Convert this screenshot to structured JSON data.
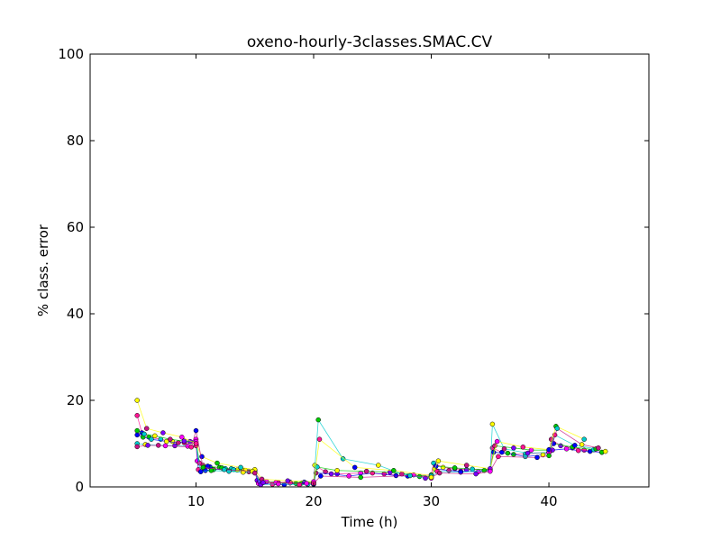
{
  "chart_data": {
    "type": "scatter",
    "title": "oxeno-hourly-3classes.SMAC.CV",
    "xlabel": "Time (h)",
    "ylabel": "% class. error",
    "xlim": [
      1,
      48.5
    ],
    "ylim": [
      0,
      100
    ],
    "xticks": [
      10,
      20,
      30,
      40
    ],
    "yticks": [
      0,
      20,
      40,
      60,
      80,
      100
    ],
    "grid": false,
    "legend": "none",
    "connected_lines": true,
    "marker": "circle",
    "colors": [
      "#ff1493",
      "#0000ff",
      "#00cc00",
      "#00cccc",
      "#ffff00",
      "#c71585",
      "#7b00ff",
      "#ff00ff"
    ],
    "series": [
      {
        "x": [
          5.0,
          5.4,
          6.0,
          7.0,
          8.0,
          9.0,
          10.0,
          10.1,
          10.6,
          11.2,
          12.0,
          13.0,
          14.0,
          15.0,
          15.2,
          16.0,
          17.0,
          18.0,
          19.0,
          20.0,
          20.1,
          21.0,
          22.0,
          24.0,
          26.0,
          28.0,
          30.0,
          30.2,
          31.0,
          32.0,
          33.0,
          35.0,
          35.2,
          36.0,
          37.0,
          38.0,
          40.0,
          40.2,
          41.0,
          42.0,
          43.0,
          44.5
        ],
        "y": [
          16.5,
          12.5,
          11.5,
          11.0,
          10.5,
          10.2,
          10.0,
          6.0,
          5.0,
          4.6,
          4.5,
          4.2,
          3.8,
          3.6,
          1.5,
          1.2,
          1.0,
          1.1,
          0.9,
          1.0,
          5.0,
          3.5,
          3.0,
          3.2,
          3.0,
          2.5,
          2.8,
          5.5,
          4.5,
          4.2,
          4.0,
          4.0,
          9.0,
          8.0,
          7.5,
          7.6,
          8.0,
          11.0,
          9.5,
          9.0,
          8.5,
          8.0
        ]
      },
      {
        "x": [
          5.0,
          5.5,
          6.2,
          7.5,
          8.5,
          9.5,
          10.0,
          10.2,
          10.8,
          11.5,
          12.5,
          13.5,
          14.5,
          15.0,
          15.3,
          16.5,
          17.5,
          18.5,
          19.5,
          20.0,
          20.2,
          21.5,
          23.0,
          25.0,
          27.0,
          29.0,
          30.0,
          30.3,
          31.5,
          32.5,
          34.0,
          35.0,
          35.3,
          36.5,
          38.0,
          39.5,
          40.0,
          40.3,
          41.5,
          42.5,
          43.5,
          44.5
        ],
        "y": [
          12.0,
          11.5,
          11.0,
          10.5,
          10.2,
          10.5,
          11.0,
          4.0,
          3.8,
          4.0,
          4.2,
          3.9,
          3.5,
          3.8,
          0.8,
          0.6,
          0.5,
          0.8,
          0.6,
          0.6,
          3.2,
          3.0,
          2.5,
          3.2,
          2.6,
          2.4,
          2.2,
          4.2,
          3.8,
          3.6,
          3.5,
          3.8,
          8.0,
          7.8,
          7.0,
          7.4,
          8.0,
          8.5,
          8.8,
          8.4,
          8.2,
          8.0
        ]
      },
      {
        "x": [
          5.0,
          5.6,
          6.5,
          7.8,
          9.0,
          10.0,
          10.3,
          11.0,
          12.2,
          13.2,
          14.2,
          15.0,
          15.4,
          16.8,
          18.0,
          19.2,
          20.0,
          20.3,
          22.0,
          24.5,
          26.5,
          28.5,
          30.0,
          30.4,
          32.0,
          33.5,
          35.0,
          35.4,
          37.0,
          38.5,
          40.0,
          40.4,
          42.0,
          43.8,
          44.8
        ],
        "y": [
          13.0,
          12.2,
          11.8,
          11.0,
          10.6,
          10.5,
          5.5,
          4.8,
          4.4,
          4.0,
          3.8,
          3.8,
          1.2,
          1.0,
          0.9,
          1.1,
          1.0,
          4.6,
          3.8,
          3.6,
          3.4,
          2.8,
          2.4,
          4.8,
          4.4,
          4.1,
          4.0,
          9.5,
          9.0,
          8.5,
          8.5,
          10.0,
          9.2,
          8.6,
          8.2
        ]
      },
      {
        "x": [
          5.0,
          5.7,
          6.8,
          8.2,
          9.3,
          10.0,
          10.4,
          11.3,
          12.8,
          14.0,
          15.0,
          15.5,
          17.0,
          18.8,
          20.0,
          20.4,
          22.5,
          25.5,
          27.5,
          29.5,
          30.0,
          30.5,
          32.5,
          34.5,
          35.0,
          35.2,
          36.2,
          38.2,
          40.0,
          40.5,
          42.2,
          44.0
        ],
        "y": [
          10.0,
          9.8,
          9.6,
          9.5,
          9.4,
          9.5,
          3.5,
          3.8,
          3.6,
          3.4,
          3.5,
          0.5,
          0.7,
          0.5,
          0.6,
          15.5,
          6.5,
          5.0,
          3.0,
          2.0,
          2.0,
          3.6,
          3.4,
          3.8,
          3.8,
          14.5,
          8.8,
          7.8,
          8.0,
          12.0,
          9.6,
          8.8
        ]
      },
      {
        "x": [
          5.0,
          5.8,
          7.2,
          8.8,
          10.0,
          10.5,
          11.8,
          13.8,
          15.0,
          15.6,
          17.8,
          20.0,
          20.5,
          23.5,
          26.8,
          30.0,
          30.6,
          33.0,
          35.0,
          35.6,
          37.8,
          40.0,
          40.6,
          43.0
        ],
        "y": [
          20.0,
          13.5,
          12.5,
          11.5,
          10.0,
          7.0,
          5.5,
          4.5,
          4.0,
          1.8,
          1.4,
          1.2,
          11.0,
          4.5,
          3.8,
          2.6,
          6.0,
          5.0,
          4.2,
          10.5,
          9.2,
          8.6,
          14.0,
          11.0
        ]
      },
      {
        "x": [
          5.0,
          5.9,
          7.4,
          9.6,
          10.0,
          10.6,
          12.4,
          14.8,
          15.0,
          15.7,
          19.4,
          20.0,
          20.6,
          24.0,
          28.2,
          30.0,
          30.7,
          33.8,
          35.0,
          35.7,
          39.0,
          40.0,
          40.7,
          42.8,
          44.2
        ],
        "y": [
          9.3,
          9.6,
          9.5,
          9.2,
          13.0,
          4.5,
          4.0,
          3.6,
          3.2,
          1.0,
          0.8,
          0.8,
          2.5,
          2.2,
          2.6,
          2.2,
          3.2,
          3.0,
          3.6,
          7.0,
          6.8,
          7.2,
          13.5,
          9.8,
          9.0
        ]
      }
    ]
  }
}
